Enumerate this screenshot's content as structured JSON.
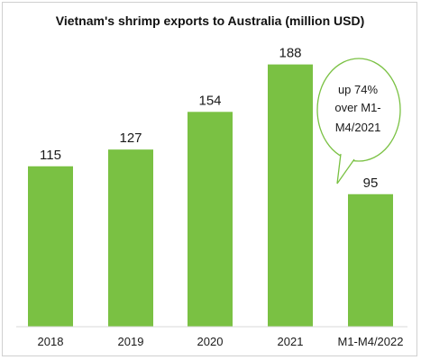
{
  "chart_data": {
    "type": "bar",
    "title": "Vietnam's shrimp exports to Australia (million USD)",
    "categories": [
      "2018",
      "2019",
      "2020",
      "2021",
      "M1-M4/2022"
    ],
    "values": [
      115,
      127,
      154,
      188,
      95
    ],
    "data_labels": [
      "115",
      "127",
      "154",
      "188",
      "95"
    ],
    "xlabel": "",
    "ylabel": "",
    "ylim": [
      0,
      200
    ],
    "grid": false,
    "legend": "none",
    "bar_color": "#7ac143",
    "annotation": {
      "lines": [
        "up 74%",
        "over M1-",
        "M4/2021"
      ],
      "target_category": "M1-M4/2022",
      "border_color": "#7ac143"
    }
  }
}
